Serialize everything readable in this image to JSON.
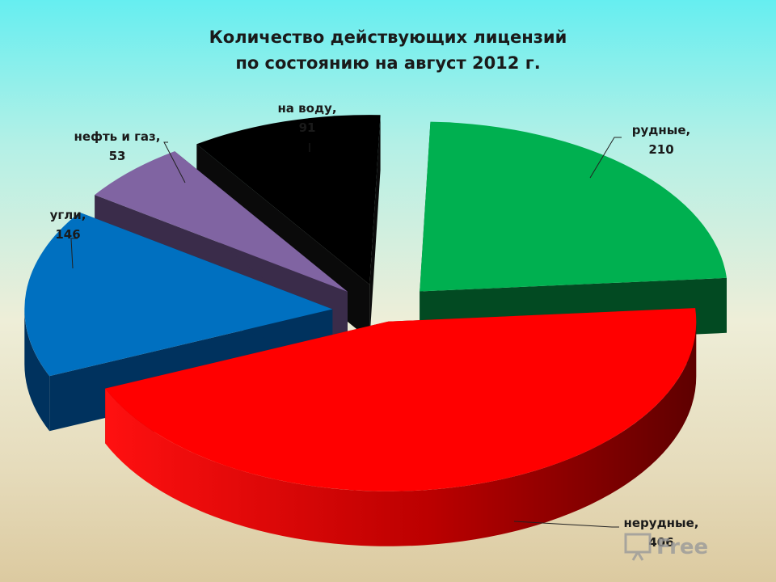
{
  "title": {
    "line1": "Количество действующих лицензий",
    "line2": "по состоянию на август 2012 г."
  },
  "chart_data": {
    "type": "pie",
    "title": "Количество действующих лицензий по состоянию на август 2012 г.",
    "categories": [
      "рудные",
      "нерудные",
      "угли",
      "нефть и газ",
      "на воду"
    ],
    "values": [
      210,
      406,
      146,
      53,
      91
    ],
    "data_labels": [
      [
        "рудные,",
        "210"
      ],
      [
        "нерудные,",
        "406"
      ],
      [
        "угли,",
        "146"
      ],
      [
        "нефть и газ,",
        "53"
      ],
      [
        "на воду,",
        "91"
      ]
    ],
    "colors": [
      "#00b050",
      "#ff0000",
      "#0070c0",
      "#8064a2",
      "#000000"
    ],
    "side_colors": [
      "#024a22",
      "#8e0000",
      "#00325e",
      "#3a2c4a",
      "#0a0a0a"
    ],
    "exploded": true,
    "style": "3d"
  },
  "watermark": {
    "text": "Free"
  }
}
